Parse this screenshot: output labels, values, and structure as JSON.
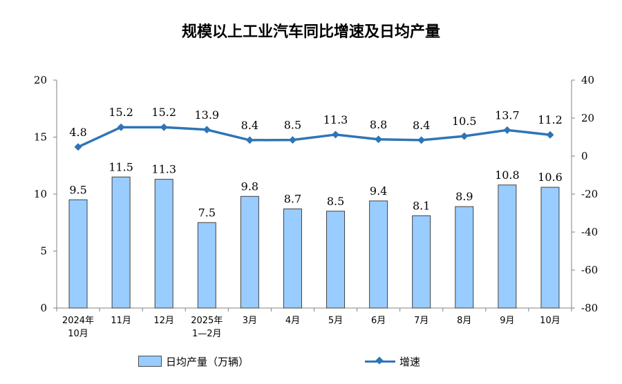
{
  "chart_data": {
    "type": "bar",
    "title": "规模以上工业汽车同比增速及日均产量",
    "categories": [
      [
        "2024年",
        "10月"
      ],
      [
        "11月"
      ],
      [
        "12月"
      ],
      [
        "2025年",
        "1—2月"
      ],
      [
        "3月"
      ],
      [
        "4月"
      ],
      [
        "5月"
      ],
      [
        "6月"
      ],
      [
        "7月"
      ],
      [
        "8月"
      ],
      [
        "9月"
      ],
      [
        "10月"
      ]
    ],
    "series": [
      {
        "name": "日均产量（万辆）",
        "type": "bar",
        "axis": "left",
        "values": [
          9.5,
          11.5,
          11.3,
          7.5,
          9.8,
          8.7,
          8.5,
          9.4,
          8.1,
          8.9,
          10.8,
          10.6
        ],
        "labels": [
          "9.5",
          "11.5",
          "11.3",
          "7.5",
          "9.8",
          "8.7",
          "8.5",
          "9.4",
          "8.1",
          "8.9",
          "10.8",
          "10.6"
        ],
        "color": "#99ccff"
      },
      {
        "name": "增速",
        "type": "line",
        "axis": "right",
        "values": [
          4.8,
          15.2,
          15.2,
          13.9,
          8.4,
          8.5,
          11.3,
          8.8,
          8.4,
          10.5,
          13.7,
          11.2
        ],
        "labels": [
          "4.8",
          "15.2",
          "15.2",
          "13.9",
          "8.4",
          "8.5",
          "11.3",
          "8.8",
          "8.4",
          "10.5",
          "13.7",
          "11.2"
        ],
        "color": "#2e75b6"
      }
    ],
    "y_left": {
      "range": [
        0,
        20
      ],
      "ticks": [
        "0",
        "5",
        "10",
        "15",
        "20"
      ]
    },
    "y_right": {
      "range": [
        -80,
        40
      ],
      "ticks": [
        "-80",
        "-60",
        "-40",
        "-20",
        "0",
        "20",
        "40"
      ]
    },
    "grid": false,
    "legend_position": "bottom"
  }
}
